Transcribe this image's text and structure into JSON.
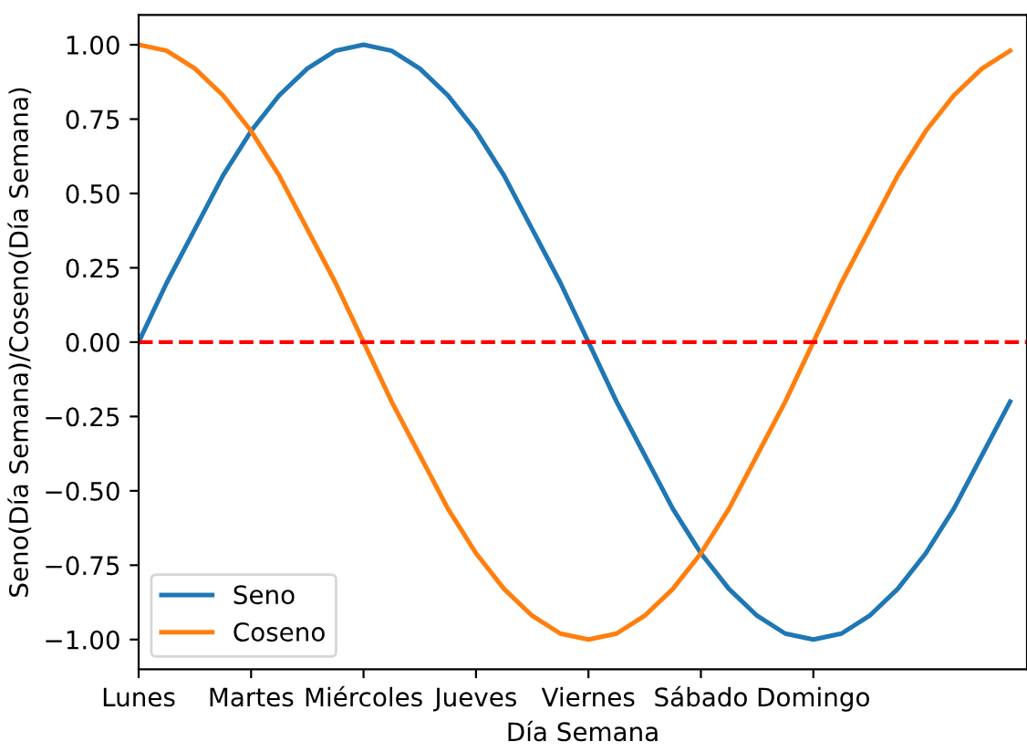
{
  "chart_data": {
    "type": "line",
    "xlabel": "Día Semana",
    "ylabel": "Seno(Día Semana)/Coseno(Día Semana)",
    "categories": [
      "Lunes",
      null,
      null,
      null,
      "Martes",
      null,
      null,
      null,
      "Miércoles",
      null,
      null,
      null,
      "Jueves",
      null,
      null,
      null,
      "Viernes",
      null,
      null,
      null,
      "Sábado",
      null,
      null,
      null,
      "Domingo",
      null,
      null,
      null,
      null,
      null,
      null,
      null
    ],
    "series": [
      {
        "name": "Seno",
        "color": "#1f77b4",
        "values": [
          0,
          0.2,
          0.38,
          0.56,
          0.71,
          0.83,
          0.92,
          0.98,
          1,
          0.98,
          0.92,
          0.83,
          0.71,
          0.56,
          0.38,
          0.2,
          0,
          -0.2,
          -0.38,
          -0.56,
          -0.71,
          -0.83,
          -0.92,
          -0.98,
          -1,
          -0.98,
          -0.92,
          -0.83,
          -0.71,
          -0.56,
          -0.38,
          -0.2
        ]
      },
      {
        "name": "Coseno",
        "color": "#ff7f0e",
        "values": [
          1,
          0.98,
          0.92,
          0.83,
          0.71,
          0.56,
          0.38,
          0.2,
          0,
          -0.2,
          -0.38,
          -0.56,
          -0.71,
          -0.83,
          -0.92,
          -0.98,
          -1,
          -0.98,
          -0.92,
          -0.83,
          -0.71,
          -0.56,
          -0.38,
          -0.2,
          0,
          0.2,
          0.38,
          0.56,
          0.71,
          0.83,
          0.92,
          0.98
        ]
      }
    ],
    "ylim": [
      -1.1,
      1.1
    ],
    "yticks": [
      {
        "value": -1,
        "label": "−1.00"
      },
      {
        "value": -0.75,
        "label": "−0.75"
      },
      {
        "value": -0.5,
        "label": "−0.50"
      },
      {
        "value": -0.25,
        "label": "−0.25"
      },
      {
        "value": 0,
        "label": "0.00"
      },
      {
        "value": 0.25,
        "label": "0.25"
      },
      {
        "value": 0.5,
        "label": "0.50"
      },
      {
        "value": 0.75,
        "label": "0.75"
      },
      {
        "value": 1,
        "label": "1.00"
      }
    ],
    "ref_lines": [
      {
        "axis": "y",
        "value": 0,
        "color": "#ff0000",
        "line_style": "dashed"
      }
    ],
    "legend": "bottom left"
  }
}
